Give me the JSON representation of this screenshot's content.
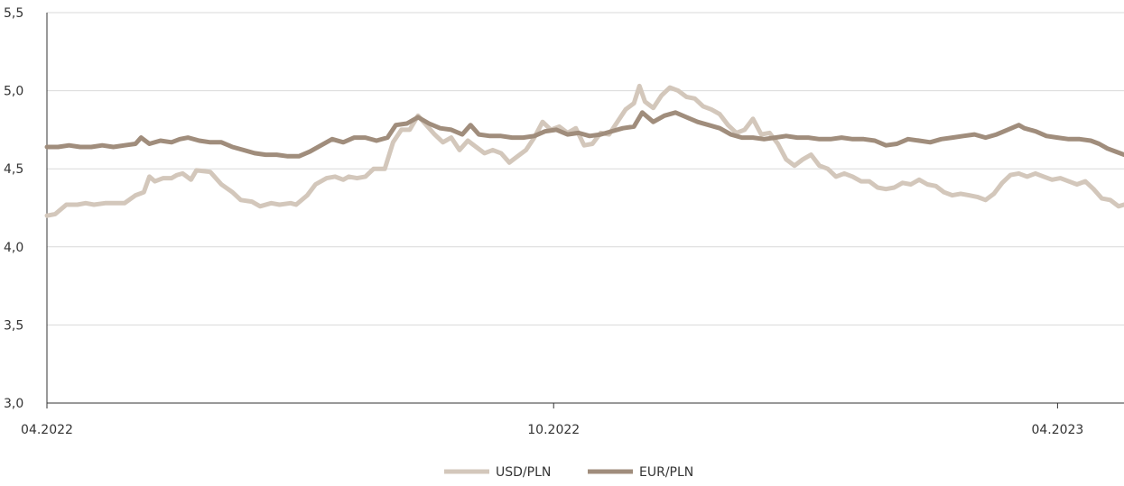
{
  "chart_data": {
    "type": "line",
    "title": "",
    "xlabel": "",
    "ylabel": "",
    "x_range": [
      "2022-04-01",
      "2023-04-25"
    ],
    "ylim": [
      3.0,
      5.5
    ],
    "y_ticks": [
      {
        "value": 3.0,
        "label": "3,0"
      },
      {
        "value": 3.5,
        "label": "3,5"
      },
      {
        "value": 4.0,
        "label": "4,0"
      },
      {
        "value": 4.5,
        "label": "4,5"
      },
      {
        "value": 5.0,
        "label": "5,0"
      },
      {
        "value": 5.5,
        "label": "5,5"
      }
    ],
    "x_ticks": [
      {
        "date": "2022-04-01",
        "label": "04.2022"
      },
      {
        "date": "2022-10-01",
        "label": "10.2022"
      },
      {
        "date": "2023-04-01",
        "label": "04.2023"
      }
    ],
    "grid": "horizontal",
    "legend_position": "bottom-center",
    "series": [
      {
        "name": "USD/PLN",
        "color": "#d3c7bb",
        "points": [
          [
            "2022-04-01",
            4.2
          ],
          [
            "2022-04-04",
            4.21
          ],
          [
            "2022-04-08",
            4.27
          ],
          [
            "2022-04-12",
            4.27
          ],
          [
            "2022-04-15",
            4.28
          ],
          [
            "2022-04-18",
            4.27
          ],
          [
            "2022-04-22",
            4.28
          ],
          [
            "2022-04-26",
            4.28
          ],
          [
            "2022-04-29",
            4.28
          ],
          [
            "2022-05-03",
            4.33
          ],
          [
            "2022-05-06",
            4.35
          ],
          [
            "2022-05-08",
            4.45
          ],
          [
            "2022-05-10",
            4.42
          ],
          [
            "2022-05-13",
            4.44
          ],
          [
            "2022-05-16",
            4.44
          ],
          [
            "2022-05-18",
            4.46
          ],
          [
            "2022-05-20",
            4.47
          ],
          [
            "2022-05-23",
            4.43
          ],
          [
            "2022-05-25",
            4.49
          ],
          [
            "2022-05-30",
            4.48
          ],
          [
            "2022-06-03",
            4.4
          ],
          [
            "2022-06-07",
            4.35
          ],
          [
            "2022-06-10",
            4.3
          ],
          [
            "2022-06-14",
            4.29
          ],
          [
            "2022-06-17",
            4.26
          ],
          [
            "2022-06-21",
            4.28
          ],
          [
            "2022-06-24",
            4.27
          ],
          [
            "2022-06-28",
            4.28
          ],
          [
            "2022-06-30",
            4.27
          ],
          [
            "2022-07-04",
            4.33
          ],
          [
            "2022-07-07",
            4.4
          ],
          [
            "2022-07-11",
            4.44
          ],
          [
            "2022-07-14",
            4.45
          ],
          [
            "2022-07-17",
            4.43
          ],
          [
            "2022-07-19",
            4.45
          ],
          [
            "2022-07-22",
            4.44
          ],
          [
            "2022-07-25",
            4.45
          ],
          [
            "2022-07-28",
            4.5
          ],
          [
            "2022-08-01",
            4.5
          ],
          [
            "2022-08-04",
            4.67
          ],
          [
            "2022-08-07",
            4.75
          ],
          [
            "2022-08-10",
            4.75
          ],
          [
            "2022-08-13",
            4.84
          ],
          [
            "2022-08-16",
            4.78
          ],
          [
            "2022-08-19",
            4.72
          ],
          [
            "2022-08-22",
            4.67
          ],
          [
            "2022-08-25",
            4.7
          ],
          [
            "2022-08-28",
            4.62
          ],
          [
            "2022-08-31",
            4.68
          ],
          [
            "2022-09-03",
            4.64
          ],
          [
            "2022-09-06",
            4.6
          ],
          [
            "2022-09-09",
            4.62
          ],
          [
            "2022-09-12",
            4.6
          ],
          [
            "2022-09-15",
            4.54
          ],
          [
            "2022-09-18",
            4.58
          ],
          [
            "2022-09-21",
            4.62
          ],
          [
            "2022-09-24",
            4.7
          ],
          [
            "2022-09-27",
            4.8
          ],
          [
            "2022-09-30",
            4.75
          ],
          [
            "2022-10-03",
            4.77
          ],
          [
            "2022-10-06",
            4.73
          ],
          [
            "2022-10-09",
            4.76
          ],
          [
            "2022-10-12",
            4.65
          ],
          [
            "2022-10-15",
            4.66
          ],
          [
            "2022-10-18",
            4.73
          ],
          [
            "2022-10-21",
            4.72
          ],
          [
            "2022-10-24",
            4.8
          ],
          [
            "2022-10-27",
            4.88
          ],
          [
            "2022-10-30",
            4.92
          ],
          [
            "2022-11-01",
            5.03
          ],
          [
            "2022-11-03",
            4.93
          ],
          [
            "2022-11-06",
            4.89
          ],
          [
            "2022-11-09",
            4.97
          ],
          [
            "2022-11-12",
            5.02
          ],
          [
            "2022-11-15",
            5.0
          ],
          [
            "2022-11-18",
            4.96
          ],
          [
            "2022-11-21",
            4.95
          ],
          [
            "2022-11-24",
            4.9
          ],
          [
            "2022-11-27",
            4.88
          ],
          [
            "2022-11-30",
            4.85
          ],
          [
            "2022-12-03",
            4.78
          ],
          [
            "2022-12-06",
            4.73
          ],
          [
            "2022-12-09",
            4.75
          ],
          [
            "2022-12-12",
            4.82
          ],
          [
            "2022-12-15",
            4.72
          ],
          [
            "2022-12-18",
            4.73
          ],
          [
            "2022-12-21",
            4.66
          ],
          [
            "2022-12-24",
            4.56
          ],
          [
            "2022-12-27",
            4.52
          ],
          [
            "2022-12-30",
            4.56
          ],
          [
            "2023-01-02",
            4.59
          ],
          [
            "2023-01-05",
            4.52
          ],
          [
            "2023-01-08",
            4.5
          ],
          [
            "2023-01-11",
            4.45
          ],
          [
            "2023-01-14",
            4.47
          ],
          [
            "2023-01-17",
            4.45
          ],
          [
            "2023-01-20",
            4.42
          ],
          [
            "2023-01-23",
            4.42
          ],
          [
            "2023-01-26",
            4.38
          ],
          [
            "2023-01-29",
            4.37
          ],
          [
            "2023-02-01",
            4.38
          ],
          [
            "2023-02-04",
            4.41
          ],
          [
            "2023-02-07",
            4.4
          ],
          [
            "2023-02-10",
            4.43
          ],
          [
            "2023-02-13",
            4.4
          ],
          [
            "2023-02-16",
            4.39
          ],
          [
            "2023-02-19",
            4.35
          ],
          [
            "2023-02-22",
            4.33
          ],
          [
            "2023-02-25",
            4.34
          ],
          [
            "2023-02-28",
            4.33
          ],
          [
            "2023-03-03",
            4.32
          ],
          [
            "2023-03-06",
            4.3
          ],
          [
            "2023-03-09",
            4.34
          ],
          [
            "2023-03-12",
            4.41
          ],
          [
            "2023-03-15",
            4.46
          ],
          [
            "2023-03-18",
            4.47
          ],
          [
            "2023-03-21",
            4.45
          ],
          [
            "2023-03-24",
            4.47
          ],
          [
            "2023-03-27",
            4.45
          ],
          [
            "2023-03-30",
            4.43
          ],
          [
            "2023-04-02",
            4.44
          ],
          [
            "2023-04-05",
            4.42
          ],
          [
            "2023-04-08",
            4.4
          ],
          [
            "2023-04-11",
            4.42
          ],
          [
            "2023-04-14",
            4.37
          ],
          [
            "2023-04-17",
            4.31
          ],
          [
            "2023-04-20",
            4.3
          ],
          [
            "2023-04-23",
            4.26
          ],
          [
            "2023-04-25",
            4.27
          ]
        ]
      },
      {
        "name": "EUR/PLN",
        "color": "#a08d7c",
        "points": [
          [
            "2022-04-01",
            4.64
          ],
          [
            "2022-04-05",
            4.64
          ],
          [
            "2022-04-09",
            4.65
          ],
          [
            "2022-04-13",
            4.64
          ],
          [
            "2022-04-17",
            4.64
          ],
          [
            "2022-04-21",
            4.65
          ],
          [
            "2022-04-25",
            4.64
          ],
          [
            "2022-04-29",
            4.65
          ],
          [
            "2022-05-03",
            4.66
          ],
          [
            "2022-05-05",
            4.7
          ],
          [
            "2022-05-08",
            4.66
          ],
          [
            "2022-05-12",
            4.68
          ],
          [
            "2022-05-16",
            4.67
          ],
          [
            "2022-05-19",
            4.69
          ],
          [
            "2022-05-22",
            4.7
          ],
          [
            "2022-05-26",
            4.68
          ],
          [
            "2022-05-30",
            4.67
          ],
          [
            "2022-06-03",
            4.67
          ],
          [
            "2022-06-07",
            4.64
          ],
          [
            "2022-06-11",
            4.62
          ],
          [
            "2022-06-15",
            4.6
          ],
          [
            "2022-06-19",
            4.59
          ],
          [
            "2022-06-23",
            4.59
          ],
          [
            "2022-06-27",
            4.58
          ],
          [
            "2022-07-01",
            4.58
          ],
          [
            "2022-07-05",
            4.61
          ],
          [
            "2022-07-09",
            4.65
          ],
          [
            "2022-07-13",
            4.69
          ],
          [
            "2022-07-17",
            4.67
          ],
          [
            "2022-07-21",
            4.7
          ],
          [
            "2022-07-25",
            4.7
          ],
          [
            "2022-07-29",
            4.68
          ],
          [
            "2022-08-02",
            4.7
          ],
          [
            "2022-08-05",
            4.78
          ],
          [
            "2022-08-09",
            4.79
          ],
          [
            "2022-08-13",
            4.83
          ],
          [
            "2022-08-17",
            4.79
          ],
          [
            "2022-08-21",
            4.76
          ],
          [
            "2022-08-25",
            4.75
          ],
          [
            "2022-08-29",
            4.72
          ],
          [
            "2022-09-01",
            4.78
          ],
          [
            "2022-09-04",
            4.72
          ],
          [
            "2022-09-08",
            4.71
          ],
          [
            "2022-09-12",
            4.71
          ],
          [
            "2022-09-16",
            4.7
          ],
          [
            "2022-09-20",
            4.7
          ],
          [
            "2022-09-24",
            4.71
          ],
          [
            "2022-09-28",
            4.74
          ],
          [
            "2022-10-02",
            4.75
          ],
          [
            "2022-10-06",
            4.72
          ],
          [
            "2022-10-10",
            4.73
          ],
          [
            "2022-10-14",
            4.71
          ],
          [
            "2022-10-18",
            4.72
          ],
          [
            "2022-10-22",
            4.74
          ],
          [
            "2022-10-26",
            4.76
          ],
          [
            "2022-10-30",
            4.77
          ],
          [
            "2022-11-02",
            4.86
          ],
          [
            "2022-11-06",
            4.8
          ],
          [
            "2022-11-10",
            4.84
          ],
          [
            "2022-11-14",
            4.86
          ],
          [
            "2022-11-18",
            4.83
          ],
          [
            "2022-11-22",
            4.8
          ],
          [
            "2022-11-26",
            4.78
          ],
          [
            "2022-11-30",
            4.76
          ],
          [
            "2022-12-04",
            4.72
          ],
          [
            "2022-12-08",
            4.7
          ],
          [
            "2022-12-12",
            4.7
          ],
          [
            "2022-12-16",
            4.69
          ],
          [
            "2022-12-20",
            4.7
          ],
          [
            "2022-12-24",
            4.71
          ],
          [
            "2022-12-28",
            4.7
          ],
          [
            "2023-01-01",
            4.7
          ],
          [
            "2023-01-05",
            4.69
          ],
          [
            "2023-01-09",
            4.69
          ],
          [
            "2023-01-13",
            4.7
          ],
          [
            "2023-01-17",
            4.69
          ],
          [
            "2023-01-21",
            4.69
          ],
          [
            "2023-01-25",
            4.68
          ],
          [
            "2023-01-29",
            4.65
          ],
          [
            "2023-02-02",
            4.66
          ],
          [
            "2023-02-06",
            4.69
          ],
          [
            "2023-02-10",
            4.68
          ],
          [
            "2023-02-14",
            4.67
          ],
          [
            "2023-02-18",
            4.69
          ],
          [
            "2023-02-22",
            4.7
          ],
          [
            "2023-02-26",
            4.71
          ],
          [
            "2023-03-02",
            4.72
          ],
          [
            "2023-03-06",
            4.7
          ],
          [
            "2023-03-10",
            4.72
          ],
          [
            "2023-03-14",
            4.75
          ],
          [
            "2023-03-18",
            4.78
          ],
          [
            "2023-03-20",
            4.76
          ],
          [
            "2023-03-24",
            4.74
          ],
          [
            "2023-03-28",
            4.71
          ],
          [
            "2023-04-01",
            4.7
          ],
          [
            "2023-04-05",
            4.69
          ],
          [
            "2023-04-09",
            4.69
          ],
          [
            "2023-04-13",
            4.68
          ],
          [
            "2023-04-16",
            4.66
          ],
          [
            "2023-04-19",
            4.63
          ],
          [
            "2023-04-22",
            4.61
          ],
          [
            "2023-04-25",
            4.59
          ]
        ]
      }
    ]
  }
}
